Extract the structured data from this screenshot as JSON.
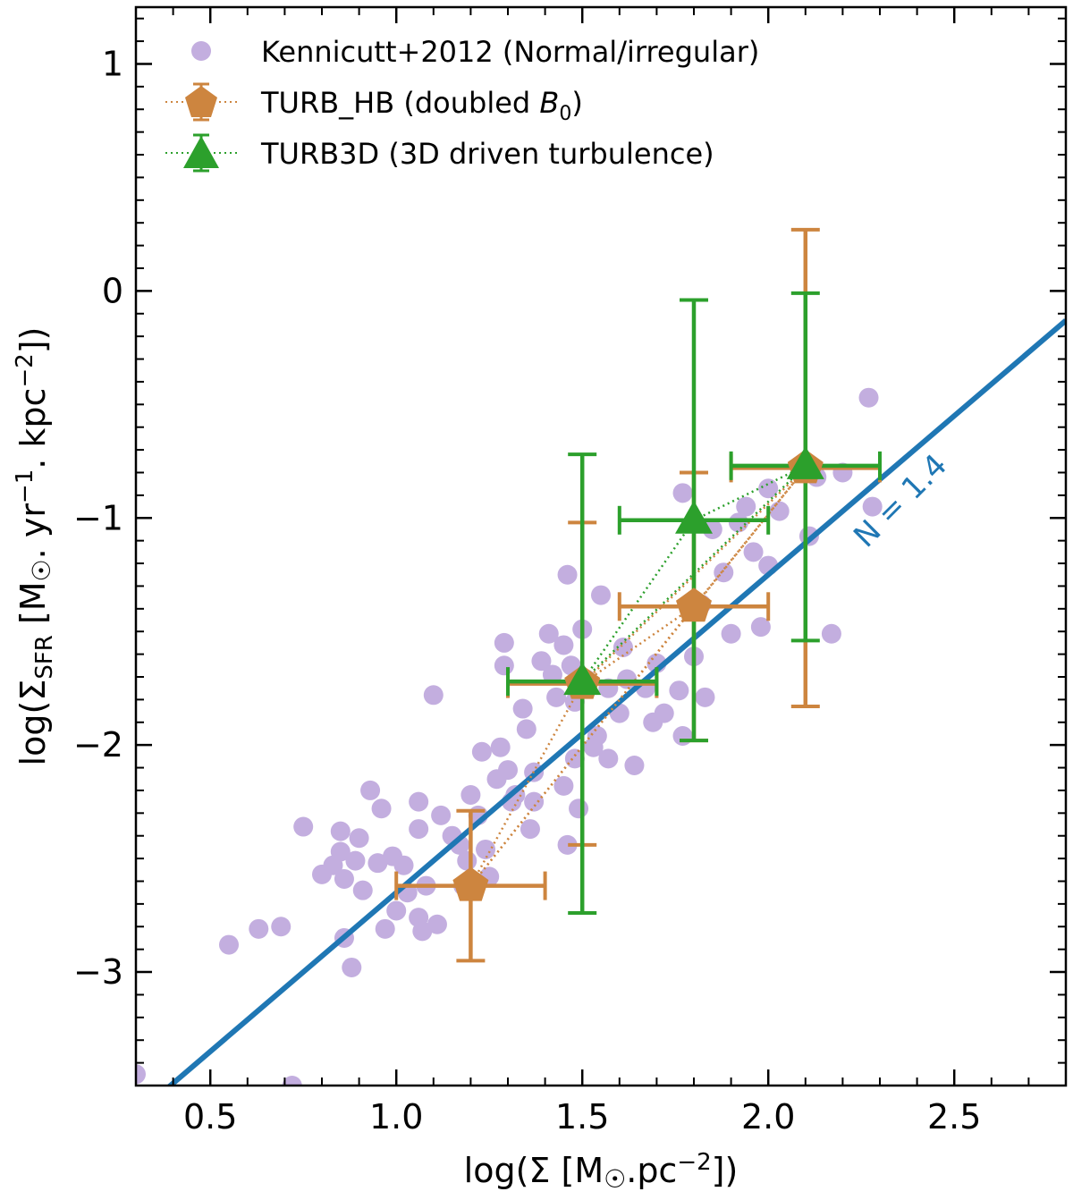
{
  "chart_data": {
    "type": "scatter",
    "xlabel": "log(Σ [M☉.pc⁻²])",
    "ylabel": "log(ΣSFR [M☉. yr⁻¹. kpc⁻²])",
    "xlim": [
      0.3,
      2.8
    ],
    "ylim": [
      -3.5,
      1.25
    ],
    "x_ticks": [
      0.5,
      1.0,
      1.5,
      2.0,
      2.5
    ],
    "x_tick_labels": [
      "0.5",
      "1.0",
      "1.5",
      "2.0",
      "2.5"
    ],
    "y_ticks": [
      1,
      0,
      -1,
      -2,
      -3
    ],
    "y_tick_labels": [
      "1",
      "0",
      "−1",
      "−2",
      "−3"
    ],
    "legend_position": "top-left",
    "colors": {
      "kennicutt": "#c3aedf",
      "turb_hb": "#cd853f",
      "turb3d": "#2ca02c",
      "fit": "#1f77b4"
    },
    "series": [
      {
        "name": "Kennicutt+2012 (Normal/irregular)",
        "kind": "scatter",
        "points": [
          [
            0.3,
            -3.45
          ],
          [
            0.72,
            -3.5
          ],
          [
            0.55,
            -2.88
          ],
          [
            0.63,
            -2.81
          ],
          [
            0.69,
            -2.8
          ],
          [
            0.75,
            -2.36
          ],
          [
            0.8,
            -2.57
          ],
          [
            0.83,
            -2.53
          ],
          [
            0.85,
            -2.38
          ],
          [
            0.85,
            -2.47
          ],
          [
            0.86,
            -2.59
          ],
          [
            0.86,
            -2.85
          ],
          [
            0.88,
            -2.98
          ],
          [
            0.89,
            -2.51
          ],
          [
            0.9,
            -2.41
          ],
          [
            0.91,
            -2.64
          ],
          [
            0.93,
            -2.2
          ],
          [
            0.95,
            -2.52
          ],
          [
            0.96,
            -2.28
          ],
          [
            0.97,
            -2.81
          ],
          [
            0.99,
            -2.49
          ],
          [
            1.0,
            -2.73
          ],
          [
            1.02,
            -2.53
          ],
          [
            1.03,
            -2.65
          ],
          [
            1.06,
            -2.25
          ],
          [
            1.06,
            -2.37
          ],
          [
            1.06,
            -2.76
          ],
          [
            1.07,
            -2.82
          ],
          [
            1.08,
            -2.62
          ],
          [
            1.1,
            -1.78
          ],
          [
            1.11,
            -2.79
          ],
          [
            1.12,
            -2.31
          ],
          [
            1.15,
            -2.4
          ],
          [
            1.17,
            -2.44
          ],
          [
            1.18,
            -2.62
          ],
          [
            1.19,
            -2.51
          ],
          [
            1.2,
            -2.22
          ],
          [
            1.22,
            -2.31
          ],
          [
            1.23,
            -2.03
          ],
          [
            1.24,
            -2.46
          ],
          [
            1.25,
            -2.58
          ],
          [
            1.27,
            -2.15
          ],
          [
            1.28,
            -2.01
          ],
          [
            1.29,
            -1.55
          ],
          [
            1.29,
            -1.65
          ],
          [
            1.3,
            -2.11
          ],
          [
            1.31,
            -2.25
          ],
          [
            1.32,
            -2.22
          ],
          [
            1.34,
            -1.84
          ],
          [
            1.35,
            -1.93
          ],
          [
            1.36,
            -2.37
          ],
          [
            1.37,
            -2.12
          ],
          [
            1.37,
            -2.25
          ],
          [
            1.39,
            -1.63
          ],
          [
            1.41,
            -1.51
          ],
          [
            1.42,
            -1.69
          ],
          [
            1.43,
            -1.79
          ],
          [
            1.45,
            -1.56
          ],
          [
            1.45,
            -2.18
          ],
          [
            1.46,
            -2.44
          ],
          [
            1.46,
            -1.25
          ],
          [
            1.47,
            -1.65
          ],
          [
            1.48,
            -1.81
          ],
          [
            1.48,
            -2.06
          ],
          [
            1.49,
            -2.28
          ],
          [
            1.5,
            -1.49
          ],
          [
            1.51,
            -1.71
          ],
          [
            1.53,
            -2.01
          ],
          [
            1.54,
            -1.96
          ],
          [
            1.55,
            -1.34
          ],
          [
            1.57,
            -1.75
          ],
          [
            1.57,
            -2.06
          ],
          [
            1.6,
            -1.86
          ],
          [
            1.61,
            -1.57
          ],
          [
            1.62,
            -1.71
          ],
          [
            1.64,
            -2.09
          ],
          [
            1.67,
            -1.75
          ],
          [
            1.69,
            -1.9
          ],
          [
            1.7,
            -1.64
          ],
          [
            1.72,
            -1.86
          ],
          [
            1.76,
            -1.76
          ],
          [
            1.77,
            -0.89
          ],
          [
            1.77,
            -1.96
          ],
          [
            1.8,
            -1.61
          ],
          [
            1.82,
            -1.38
          ],
          [
            1.83,
            -1.79
          ],
          [
            1.85,
            -1.05
          ],
          [
            1.88,
            -1.24
          ],
          [
            1.9,
            -1.51
          ],
          [
            1.92,
            -1.02
          ],
          [
            1.94,
            -0.95
          ],
          [
            1.96,
            -1.15
          ],
          [
            1.98,
            -1.48
          ],
          [
            2.0,
            -1.21
          ],
          [
            2.0,
            -0.87
          ],
          [
            2.03,
            -0.97
          ],
          [
            2.1,
            -0.78
          ],
          [
            2.11,
            -1.08
          ],
          [
            2.13,
            -0.82
          ],
          [
            2.17,
            -1.51
          ],
          [
            2.2,
            -0.8
          ],
          [
            2.27,
            -0.47
          ],
          [
            2.28,
            -0.95
          ]
        ]
      },
      {
        "name": "TURB_HB (doubled B0)",
        "kind": "errorbar",
        "marker": "pentagon",
        "points": [
          {
            "x": 1.2,
            "y": -2.62,
            "xerr": 0.2,
            "ylow": -2.95,
            "yhigh": -2.29
          },
          {
            "x": 1.5,
            "y": -1.73,
            "xerr": 0.2,
            "ylow": -2.44,
            "yhigh": -1.02
          },
          {
            "x": 1.8,
            "y": -1.39,
            "xerr": 0.2,
            "ylow": -1.98,
            "yhigh": -0.8
          },
          {
            "x": 2.1,
            "y": -0.78,
            "xerr": 0.2,
            "ylow": -1.83,
            "yhigh": 0.27
          }
        ]
      },
      {
        "name": "TURB3D (3D driven turbulence)",
        "kind": "errorbar",
        "marker": "triangle",
        "points": [
          {
            "x": 1.5,
            "y": -1.72,
            "xerr": 0.2,
            "ylow": -2.74,
            "yhigh": -0.72
          },
          {
            "x": 1.8,
            "y": -1.01,
            "xerr": 0.2,
            "ylow": -1.98,
            "yhigh": -0.04
          },
          {
            "x": 2.1,
            "y": -0.77,
            "xerr": 0.2,
            "ylow": -1.54,
            "yhigh": -0.01
          }
        ]
      }
    ],
    "fit_line": {
      "slope": 1.4,
      "intercept": -4.05,
      "label": "N = 1.4"
    },
    "legend": [
      {
        "label": "Kennicutt+2012 (Normal/irregular)"
      },
      {
        "label": "TURB_HB (doubled ",
        "label_italic": "B",
        "label_sub": "0",
        "label_end": ")"
      },
      {
        "label": "TURB3D (3D driven turbulence)"
      }
    ],
    "axis_titles": {
      "x_prefix": "log(Σ [M",
      "x_sym": "☉",
      "x_mid": ".pc",
      "x_sup": "−2",
      "x_end": "])",
      "y_prefix": "log(Σ",
      "y_sub": "SFR",
      "y_mid1": " [M",
      "y_sym": "☉",
      "y_mid2": ". yr",
      "y_sup1": "−1",
      "y_mid3": ". kpc",
      "y_sup2": "−2",
      "y_end": "])"
    }
  }
}
